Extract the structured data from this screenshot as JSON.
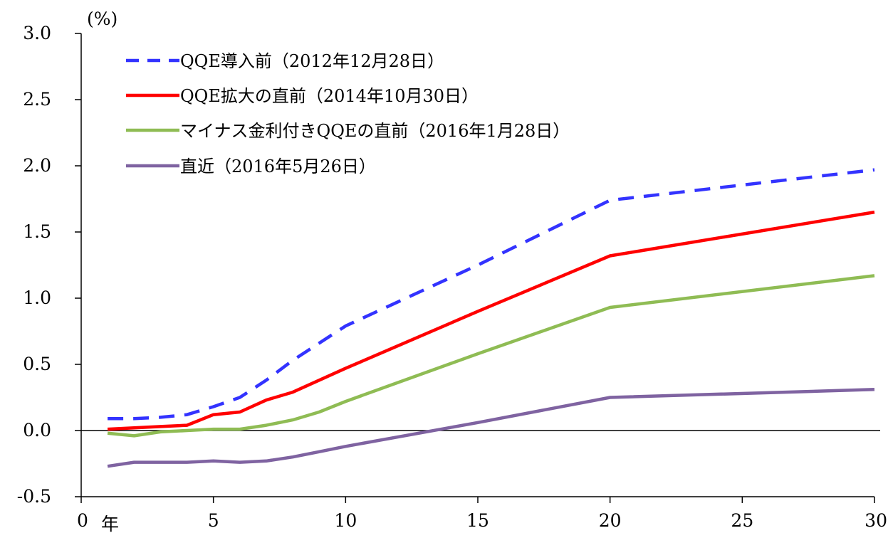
{
  "chart_data": {
    "type": "line",
    "x": [
      1,
      2,
      3,
      4,
      5,
      6,
      7,
      8,
      9,
      10,
      15,
      20,
      30
    ],
    "xlim": [
      0,
      30
    ],
    "ylim": [
      -0.5,
      3.0
    ],
    "x_ticks": [
      0,
      5,
      10,
      15,
      20,
      25,
      30
    ],
    "x_tick_labels": [
      "0",
      "5",
      "10",
      "15",
      "20",
      "25",
      "30"
    ],
    "y_ticks": [
      -0.5,
      0.0,
      0.5,
      1.0,
      1.5,
      2.0,
      2.5,
      3.0
    ],
    "y_tick_labels": [
      "-0.5",
      "0.0",
      "0.5",
      "1.0",
      "1.5",
      "2.0",
      "2.5",
      "3.0"
    ],
    "y_unit_label": "(%)",
    "x_unit_label": "年",
    "grid": false,
    "zero_line": true,
    "legend_position": "top-left",
    "series": [
      {
        "name": "QQE導入前（2012年12月28日）",
        "color": "#3333ff",
        "dashed": true,
        "values": [
          0.09,
          0.09,
          0.1,
          0.12,
          0.18,
          0.25,
          0.38,
          0.53,
          0.66,
          0.79,
          1.25,
          1.74,
          1.97
        ]
      },
      {
        "name": "QQE拡大の直前（2014年10月30日）",
        "color": "#ff0000",
        "dashed": false,
        "values": [
          0.01,
          0.02,
          0.03,
          0.04,
          0.12,
          0.14,
          0.23,
          0.29,
          0.38,
          0.47,
          0.9,
          1.32,
          1.65
        ]
      },
      {
        "name": "マイナス金利付きQQEの直前（2016年1月28日）",
        "color": "#8fbc54",
        "dashed": false,
        "values": [
          -0.02,
          -0.04,
          -0.01,
          0.0,
          0.01,
          0.01,
          0.04,
          0.08,
          0.14,
          0.22,
          0.58,
          0.93,
          1.17
        ]
      },
      {
        "name": "直近（2016年5月26日）",
        "color": "#7f63a1",
        "dashed": false,
        "values": [
          -0.27,
          -0.24,
          -0.24,
          -0.24,
          -0.23,
          -0.24,
          -0.23,
          -0.2,
          -0.16,
          -0.12,
          0.06,
          0.25,
          0.31
        ]
      }
    ]
  }
}
